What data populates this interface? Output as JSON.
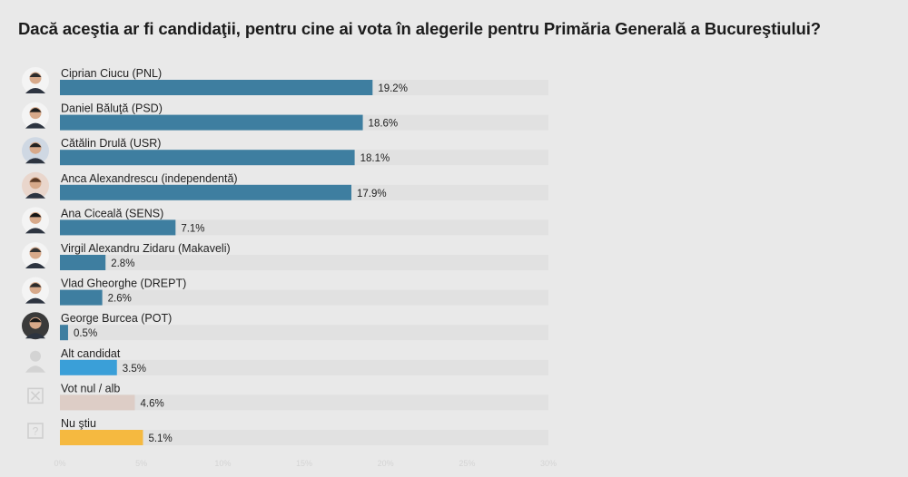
{
  "chart_data": {
    "type": "bar",
    "orientation": "horizontal",
    "title": "Dacă aceştia ar fi candidaţii, pentru cine ai vota în alegerile pentru Primăria Generală a Bucureştiului?",
    "categories": [
      "Ciprian Ciucu (PNL)",
      "Daniel Băluţă (PSD)",
      "Cătălin Drulă (USR)",
      "Anca Alexandrescu (independentă)",
      "Ana Ciceală (SENS)",
      "Virgil Alexandru Zidaru (Makaveli)",
      "Vlad Gheorghe (DREPT)",
      "George Burcea (POT)",
      "Alt candidat",
      "Vot nul / alb",
      "Nu ştiu"
    ],
    "values": [
      19.2,
      18.6,
      18.1,
      17.9,
      7.1,
      2.8,
      2.6,
      0.5,
      3.5,
      4.6,
      5.1
    ],
    "value_labels": [
      "19.2%",
      "18.6%",
      "18.1%",
      "17.9%",
      "7.1%",
      "2.8%",
      "2.6%",
      "0.5%",
      "3.5%",
      "4.6%",
      "5.1%"
    ],
    "bar_colors": [
      "#3e7ea0",
      "#3e7ea0",
      "#3e7ea0",
      "#3e7ea0",
      "#3e7ea0",
      "#3e7ea0",
      "#3e7ea0",
      "#3e7ea0",
      "#3a9fd8",
      "#ddcdc6",
      "#f5b940"
    ],
    "icons": [
      "candidate-photo-icon",
      "candidate-photo-icon",
      "candidate-photo-icon",
      "candidate-photo-icon",
      "candidate-photo-icon",
      "candidate-photo-icon",
      "candidate-photo-icon",
      "candidate-photo-icon",
      "person-silhouette-icon",
      "ballot-x-icon",
      "question-mark-icon"
    ],
    "xlim": [
      0,
      30
    ],
    "xticks": [
      0,
      5,
      10,
      15,
      20,
      25,
      30
    ],
    "xtick_labels": [
      "0%",
      "5%",
      "10%",
      "15%",
      "20%",
      "25%",
      "30%"
    ],
    "xlabel": "",
    "ylabel": "",
    "grid": false,
    "legend": "none",
    "track_color": "#e1e1e1"
  }
}
